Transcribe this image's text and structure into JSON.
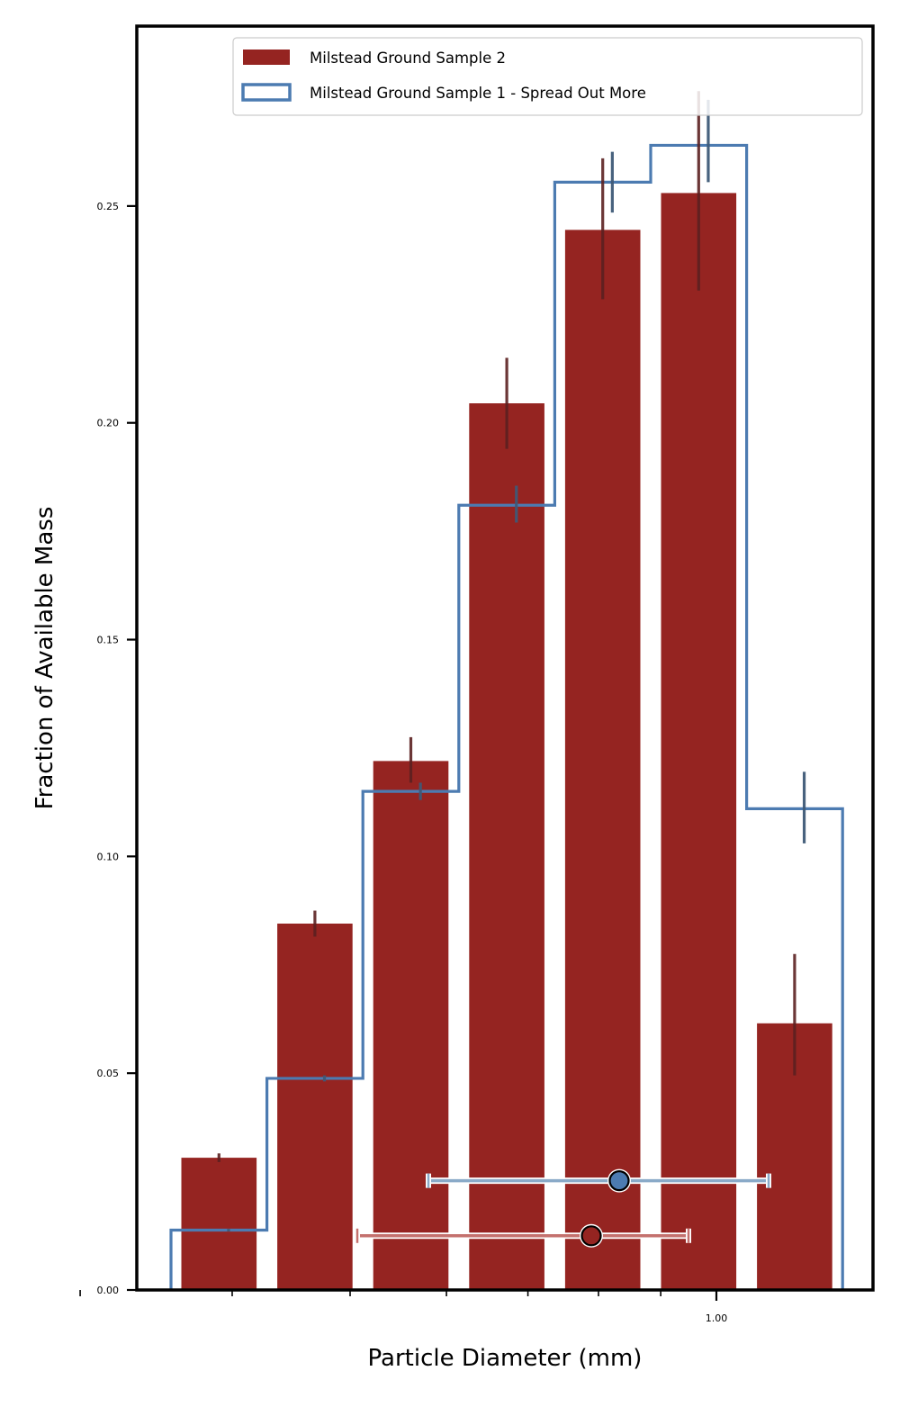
{
  "chart_data": {
    "type": "bar",
    "title": "",
    "xlabel": "Particle Diameter (mm)",
    "ylabel": "Fraction of Available Mass",
    "x_scale": "log",
    "ylim": [
      0,
      0.2915
    ],
    "y_ticks": [
      "0.00",
      "0.05",
      "0.10",
      "0.15",
      "0.20",
      "0.25"
    ],
    "x_major_tick_labels": [
      "1.00"
    ],
    "legend": {
      "placement": "top-right",
      "entries": [
        "Milstead Ground Sample 2",
        "Milstead Ground Sample 1 - Spread Out More"
      ]
    },
    "grid": false,
    "series": [
      {
        "name": "Milstead Ground Sample 2",
        "type": "bar",
        "values": [
          0.0305,
          0.0845,
          0.122,
          0.2045,
          0.2445,
          0.253,
          0.0615
        ],
        "error_low": [
          0.0295,
          0.0815,
          0.117,
          0.194,
          0.2285,
          0.2305,
          0.0495
        ],
        "error_high": [
          0.0315,
          0.0875,
          0.1275,
          0.215,
          0.261,
          0.2765,
          0.0775
        ],
        "color": "#952421",
        "error_color": "#5b2020"
      },
      {
        "name": "Milstead Ground Sample 1 - Spread Out More",
        "type": "step",
        "values": [
          0.0138,
          0.0488,
          0.115,
          0.181,
          0.2555,
          0.264,
          0.111
        ],
        "error_low": [
          0.0135,
          0.0481,
          0.113,
          0.177,
          0.2485,
          0.2555,
          0.103
        ],
        "error_high": [
          0.0141,
          0.0495,
          0.117,
          0.1855,
          0.2625,
          0.2745,
          0.1195
        ],
        "color": "#4c7bb1",
        "error_color": "#3e5a77"
      }
    ],
    "summary_markers": [
      {
        "series": "Milstead Ground Sample 1 - Spread Out More",
        "y": 0.0252,
        "color": "#4c7bb1",
        "bar_color": "#8aaac8"
      },
      {
        "series": "Milstead Ground Sample 2",
        "y": 0.0125,
        "color": "#952421",
        "bar_color": "#c4716e"
      }
    ]
  }
}
